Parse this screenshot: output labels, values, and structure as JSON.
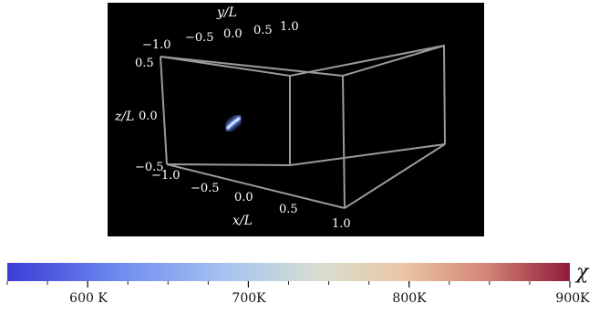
{
  "figure": {
    "axes": {
      "x": {
        "label": "x/L",
        "ticks": [
          "−1.0",
          "−0.5",
          "0.0",
          "0.5",
          "1.0"
        ]
      },
      "y": {
        "label": "y/L",
        "ticks": [
          "−1.0",
          "−0.5",
          "0.0",
          "0.5",
          "1.0"
        ]
      },
      "z": {
        "label": "z/L",
        "ticks": [
          "0.5",
          "0.0",
          "−0.5"
        ]
      }
    },
    "helix": {
      "turns": 6,
      "color_core": "#ffffff",
      "color_glow": "#5b7fe0"
    },
    "colorbar": {
      "symbol": "χ",
      "range": [
        550,
        900
      ],
      "ticks": [
        {
          "value": 600,
          "label": "600 K"
        },
        {
          "value": 700,
          "label": "700K"
        },
        {
          "value": 800,
          "label": "800K"
        },
        {
          "value": 900,
          "label": "900K"
        }
      ],
      "colors": [
        "#3b3bd6",
        "#6f8cf0",
        "#a9c6f0",
        "#d8dfd2",
        "#eac8a6",
        "#d48676",
        "#8e1a3a"
      ]
    },
    "colors": {
      "plot_background": "#000000",
      "box_edges": "#9a9a9a"
    }
  }
}
